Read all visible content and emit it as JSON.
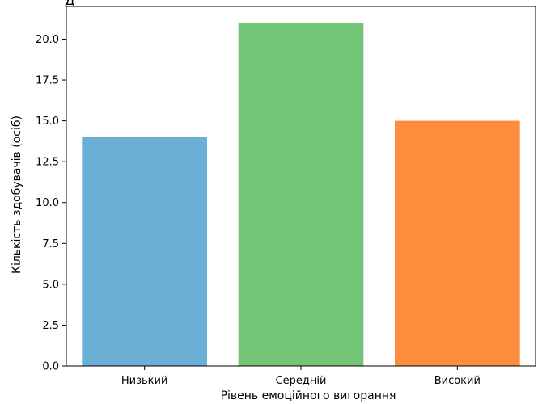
{
  "chart_data": {
    "type": "bar",
    "title": "Д",
    "categories": [
      "Низький",
      "Середній",
      "Високий"
    ],
    "values": [
      14,
      21,
      15
    ],
    "colors": [
      "#6baed6",
      "#74c476",
      "#fd8d3c"
    ],
    "xlabel": "Рівень емоційного вигорання",
    "ylabel": "Кількість здобувачів (осіб)",
    "ylim": [
      0,
      22
    ],
    "yticks": [
      "0.0",
      "2.5",
      "5.0",
      "7.5",
      "10.0",
      "12.5",
      "15.0",
      "17.5",
      "20.0"
    ],
    "grid": false,
    "legend": false
  }
}
